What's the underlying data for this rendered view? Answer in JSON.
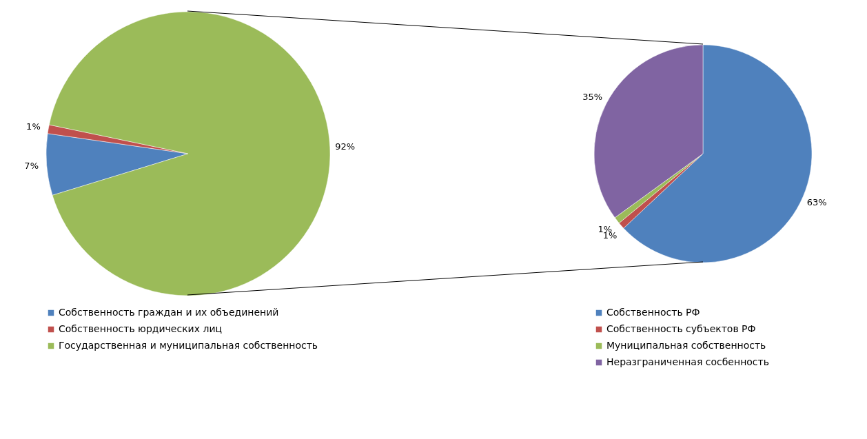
{
  "chart_data": [
    {
      "type": "pie",
      "categories": [
        "Собственность граждан и их объединений",
        "Собственность юрдических  лиц",
        "Государственная и муниципальная собственность"
      ],
      "values": [
        7,
        1,
        92
      ],
      "colors": [
        "#4f81bd",
        "#c0504d",
        "#9bbb59"
      ],
      "value_labels": [
        "7%",
        "1%",
        "92%"
      ],
      "legend": "bottom"
    },
    {
      "type": "pie",
      "categories": [
        "Собственность РФ",
        "Собственность субъектов  РФ",
        "Муниципальная собственность",
        "Неразграниченная сосбенность"
      ],
      "values": [
        63,
        1,
        1,
        35
      ],
      "colors": [
        "#4f81bd",
        "#c0504d",
        "#9bbb59",
        "#8064a2"
      ],
      "value_labels": [
        "63%",
        "1%",
        "1%",
        "35%"
      ],
      "legend": "bottom"
    }
  ]
}
